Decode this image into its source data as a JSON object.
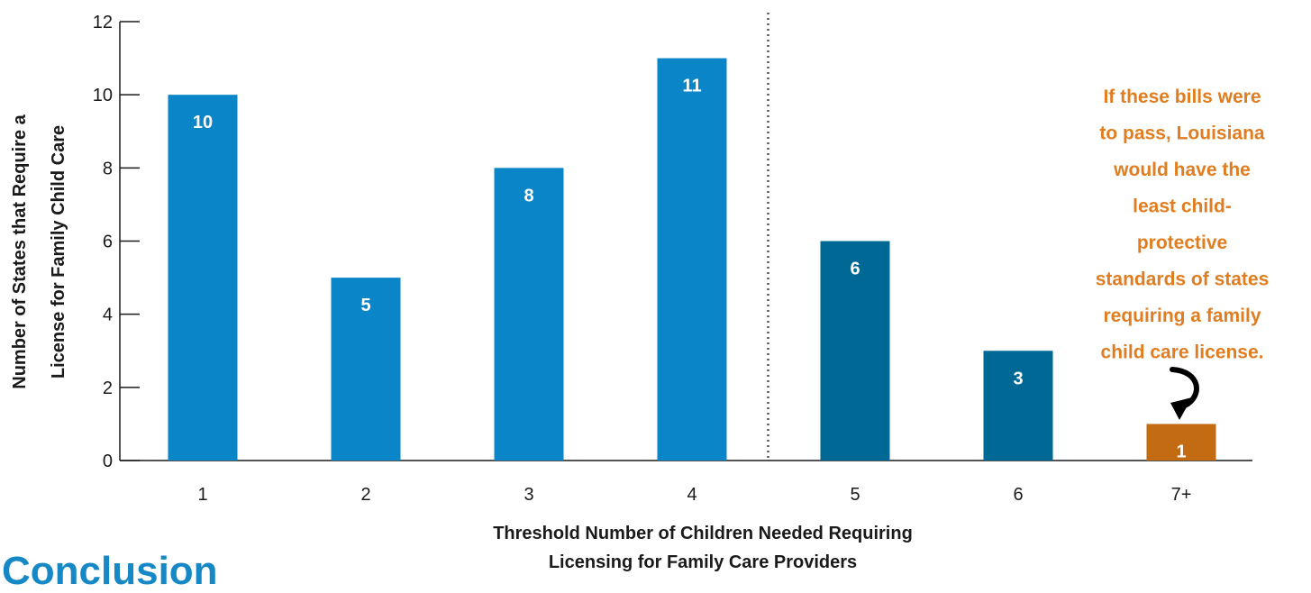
{
  "chart_data": {
    "type": "bar",
    "categories": [
      "1",
      "2",
      "3",
      "4",
      "5",
      "6",
      "7+"
    ],
    "values": [
      10,
      5,
      8,
      11,
      6,
      3,
      1
    ],
    "value_labels": [
      "10",
      "5",
      "8",
      "11",
      "6",
      "3",
      "1"
    ],
    "bar_colors": [
      "#0a86c8",
      "#0a86c8",
      "#0a86c8",
      "#0a86c8",
      "#006895",
      "#006895",
      "#c36b12"
    ],
    "ylim": [
      0,
      12
    ],
    "yticks": [
      0,
      2,
      4,
      6,
      8,
      10,
      12
    ],
    "ylabel_lines": [
      "Number of States that Require a",
      "License for Family Child Care"
    ],
    "xlabel_lines": [
      "Threshold Number of Children Needed Requiring",
      "Licensing for Family Care Providers"
    ],
    "divider_between": [
      "4",
      "5"
    ],
    "grid": false,
    "annotation": {
      "lines": [
        "If these bills were",
        "to pass, Louisiana",
        "would have the",
        "least child-",
        "protective",
        "standards of states",
        "requiring a family",
        "child care license."
      ],
      "color": "#e07d20",
      "points_to": "7+"
    }
  },
  "partial_heading": "Conclusion"
}
